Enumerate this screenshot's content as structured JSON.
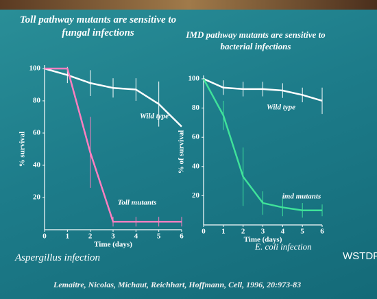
{
  "chart_data": [
    {
      "type": "line",
      "title": "Toll pathway mutants are sensitive to fungal infections",
      "x_label": "Time (days)",
      "y_label": "% survival",
      "annotation": "Aspergillus infection",
      "x": [
        0,
        1,
        2,
        3,
        4,
        5,
        6
      ],
      "xlim": [
        0,
        6
      ],
      "xticks": [
        0,
        1,
        2,
        3,
        4,
        5,
        6
      ],
      "ylim": [
        0,
        100
      ],
      "yticks": [
        20,
        40,
        60,
        80,
        100
      ],
      "series": [
        {
          "name": "Wild type",
          "color": "#ffffff",
          "values": [
            100,
            96,
            91,
            88,
            87,
            78,
            64
          ],
          "errors": [
            null,
            5,
            8,
            6,
            7,
            14,
            null
          ]
        },
        {
          "name": "Toll mutants",
          "color": "#ff7fc0",
          "values": [
            100,
            100,
            48,
            5,
            5,
            5,
            5
          ],
          "errors": [
            null,
            null,
            22,
            3,
            3,
            3,
            3
          ]
        }
      ]
    },
    {
      "type": "line",
      "title": "IMD pathway mutants are sensitive to bacterial infections",
      "x_label": "Time (days)",
      "y_label": "% of survival",
      "annotation": "E. coli infection",
      "x": [
        0,
        1,
        2,
        3,
        4,
        5,
        6
      ],
      "xlim": [
        0,
        6
      ],
      "xticks": [
        0,
        1,
        2,
        3,
        4,
        5,
        6
      ],
      "ylim": [
        0,
        100
      ],
      "yticks": [
        20,
        40,
        60,
        80,
        100
      ],
      "series": [
        {
          "name": "Wild type",
          "color": "#ffffff",
          "values": [
            100,
            94,
            93,
            93,
            92,
            89,
            85
          ],
          "errors": [
            null,
            5,
            5,
            5,
            5,
            5,
            9
          ]
        },
        {
          "name": "imd mutants",
          "color": "#3fe29a",
          "values": [
            100,
            75,
            33,
            15,
            12,
            10,
            10
          ],
          "errors": [
            null,
            10,
            20,
            8,
            6,
            5,
            4
          ]
        }
      ]
    }
  ],
  "footer": {
    "citation": "Lemaitre, Nicolas, Michaut, Reichhart, Hoffmann, Cell, 1996, 20:973-83",
    "logo": "WSTDF"
  }
}
